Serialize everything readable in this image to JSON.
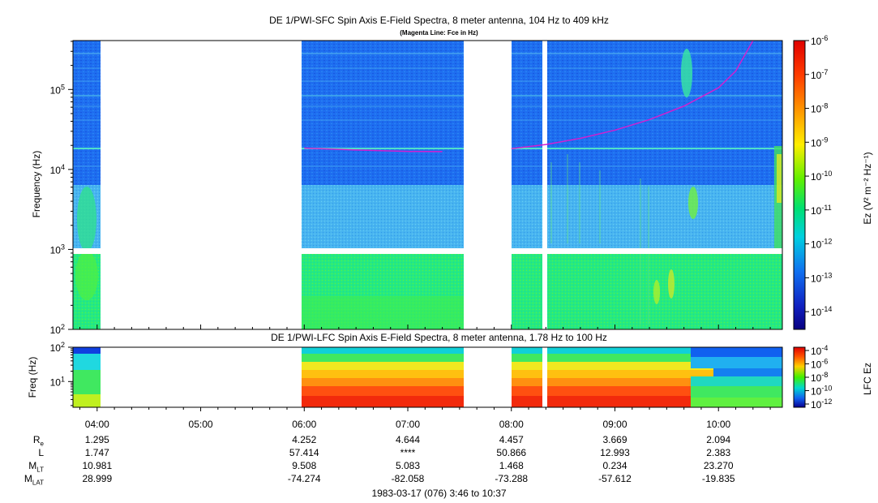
{
  "top_panel": {
    "title": "DE 1/PWI-SFC  Spin Axis E-Field Spectra, 8 meter antenna, 104 Hz to 409 kHz",
    "subtitle": "(Magenta Line: Fce in Hz)",
    "ylabel": "Frequency (Hz)",
    "colorbar_label": "Ez (V² m⁻² Hz⁻¹)"
  },
  "bottom_panel": {
    "title": "DE 1/PWI-LFC  Spin Axis E-Field Spectra, 8 meter antenna, 1.78 Hz to 100 Hz",
    "ylabel": "Freq (Hz)",
    "colorbar_label": "LFC Ez"
  },
  "footer": {
    "date_range": "1983-03-17 (076) 3:46 to 10:37"
  },
  "ephemeris": {
    "labels": [
      "R",
      "L",
      "M",
      "M"
    ],
    "label_subs": [
      "e",
      "",
      "LT",
      "LAT"
    ],
    "rows": [
      [
        "1.295",
        "4.252",
        "4.644",
        "4.457",
        "3.669",
        "2.094"
      ],
      [
        "1.747",
        "57.414",
        "****",
        "50.866",
        "12.993",
        "2.383"
      ],
      [
        "10.981",
        "9.508",
        "5.083",
        "1.468",
        "0.234",
        "23.270"
      ],
      [
        "28.999",
        "-74.274",
        "-82.058",
        "-73.288",
        "-57.612",
        "-19.835"
      ]
    ],
    "columns_time": [
      "04:00",
      "06:00",
      "07:00",
      "08:00",
      "09:00",
      "10:00"
    ]
  },
  "colors": {
    "magenta_line": "#d020d0",
    "panel_blue": "#1e6ef0",
    "panel_cyan": "#4ab8f0",
    "panel_green": "#22e878",
    "lfc_red": "#ff2a10",
    "lfc_orange": "#ff8c10",
    "lfc_yellow": "#f8e818"
  },
  "chart_data": [
    {
      "type": "heatmap",
      "title": "DE 1/PWI-SFC  Spin Axis E-Field Spectra, 8 meter antenna, 104 Hz to 409 kHz",
      "subtitle": "(Magenta Line: Fce in Hz)",
      "xlabel": "",
      "ylabel": "Frequency (Hz)",
      "yscale": "log",
      "ylim": [
        100,
        409000
      ],
      "xlim": [
        "03:46",
        "10:37"
      ],
      "xticks": [
        "04:00",
        "05:00",
        "06:00",
        "07:00",
        "08:00",
        "09:00",
        "10:00"
      ],
      "yticks": [
        100,
        1000,
        10000,
        100000
      ],
      "ytick_labels": [
        "10^2",
        "10^3",
        "10^4",
        "10^5"
      ],
      "colorbar": {
        "label": "Ez (V^2 m^-2 Hz^-1)",
        "scale": "log",
        "range": [
          3e-15,
          1e-06
        ],
        "ticks": [
          "10^-6",
          "10^-7",
          "10^-8",
          "10^-9",
          "10^-10",
          "10^-11",
          "10^-12",
          "10^-13",
          "10^-14"
        ]
      },
      "data_gaps": [
        [
          "04:02",
          "05:58"
        ],
        [
          "07:32",
          "07:59"
        ],
        [
          "08:17",
          "08:18"
        ]
      ],
      "fce_line": {
        "name": "Fce in Hz",
        "times": [
          "06:00",
          "06:30",
          "07:00",
          "07:20",
          "08:00",
          "08:20",
          "08:40",
          "09:00",
          "09:20",
          "09:40",
          "10:00",
          "10:10",
          "10:20"
        ],
        "freq_hz": [
          18500,
          17500,
          16800,
          16700,
          18200,
          20500,
          24500,
          31000,
          42000,
          62000,
          105000,
          170000,
          409000
        ]
      }
    },
    {
      "type": "heatmap",
      "title": "DE 1/PWI-LFC  Spin Axis E-Field Spectra, 8 meter antenna, 1.78 Hz to 100 Hz",
      "xlabel": "",
      "ylabel": "Freq (Hz)",
      "yscale": "log",
      "ylim": [
        1.78,
        100
      ],
      "yticks": [
        10,
        100
      ],
      "ytick_labels": [
        "10^1",
        "10^2"
      ],
      "colorbar": {
        "label": "LFC Ez",
        "scale": "log",
        "ticks": [
          "10^-4",
          "10^-6",
          "10^-8",
          "10^-10",
          "10^-12"
        ]
      },
      "data_gaps": [
        [
          "04:02",
          "05:58"
        ],
        [
          "07:32",
          "07:59"
        ],
        [
          "08:17",
          "08:18"
        ]
      ]
    }
  ]
}
